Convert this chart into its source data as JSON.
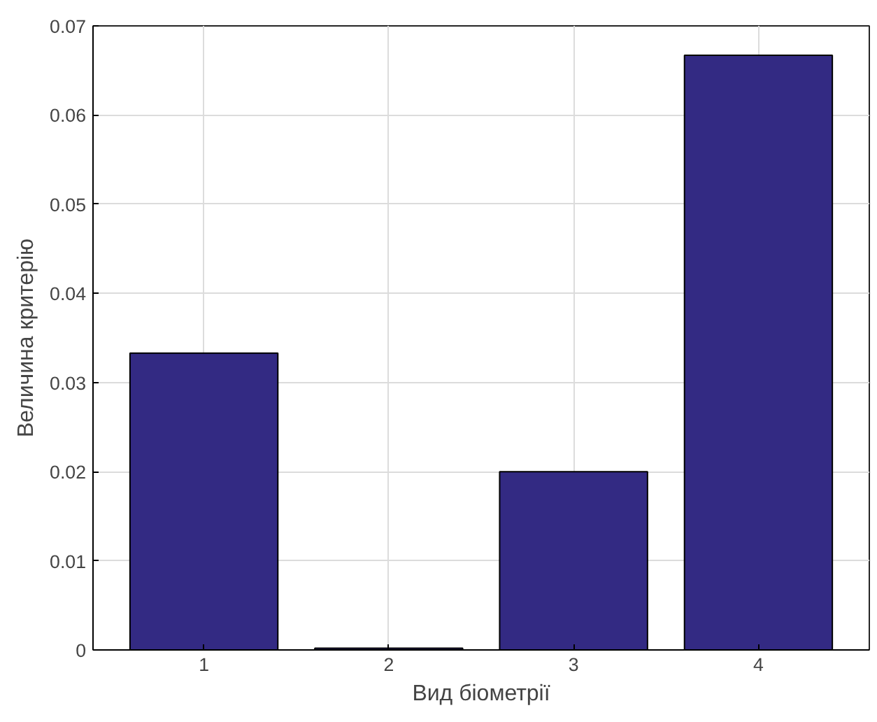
{
  "chart_data": {
    "type": "bar",
    "xlabel": "Вид біометрії",
    "ylabel": "Величина критерію",
    "x": [
      1,
      2,
      3,
      4
    ],
    "values": [
      0.0333,
      0.0002,
      0.02,
      0.0667
    ],
    "color": "#332a83",
    "xlim": [
      0.4,
      4.6
    ],
    "xticks": [
      1,
      2,
      3,
      4
    ],
    "ylim": [
      0,
      0.07
    ],
    "yticks": [
      0,
      0.01,
      0.02,
      0.03,
      0.04,
      0.05,
      0.06,
      0.07
    ],
    "grid": true
  }
}
